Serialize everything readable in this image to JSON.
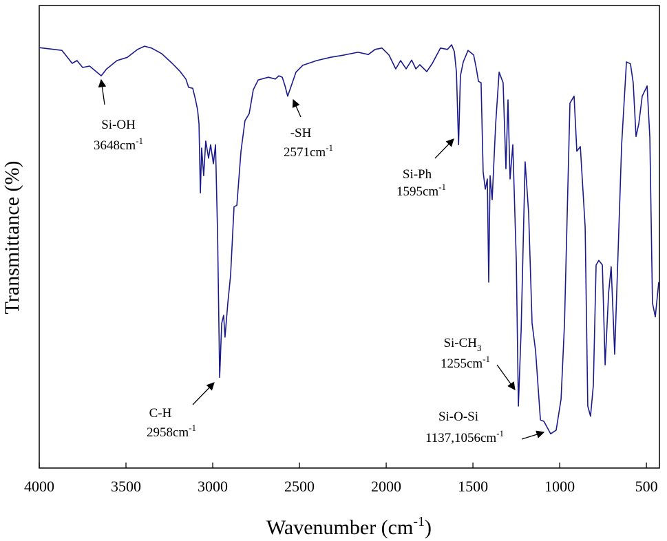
{
  "chart_data": {
    "type": "line",
    "x_label": {
      "text": "Wavenumber (cm",
      "superscript": "-1",
      "suffix": ")"
    },
    "y_label": "Transmittance (%)",
    "color": "#1a1a8c",
    "xlim": [
      4000,
      425
    ],
    "ylim": [
      0,
      100
    ],
    "xticks": [
      4000,
      3500,
      3000,
      2500,
      2000,
      1500,
      1000,
      500
    ],
    "annotations": [
      {
        "label": "Si-OH",
        "wavenumber": "3648cm",
        "exponent": "-1"
      },
      {
        "label": "-SH",
        "wavenumber": "2571cm",
        "exponent": "-1"
      },
      {
        "label": "Si-Ph",
        "wavenumber": "1595cm",
        "exponent": "-1"
      },
      {
        "label": "C-H",
        "wavenumber": "2958cm",
        "exponent": "-1"
      },
      {
        "label": "Si-CH",
        "label_subscript": "3",
        "wavenumber": "1255cm",
        "exponent": "-1"
      },
      {
        "label": "Si-O-Si",
        "wavenumber": "1137,1056cm",
        "exponent": "-1"
      }
    ],
    "x": [
      4000,
      3869,
      3810,
      3782,
      3750,
      3710,
      3671,
      3643,
      3611,
      3552,
      3492,
      3433,
      3393,
      3353,
      3294,
      3234,
      3187,
      3155,
      3139,
      3115,
      3099,
      3087,
      3079,
      3071,
      3064,
      3052,
      3040,
      3024,
      3012,
      2996,
      2984,
      2972,
      2960,
      2948,
      2937,
      2929,
      2913,
      2897,
      2877,
      2861,
      2837,
      2814,
      2790,
      2766,
      2738,
      2679,
      2639,
      2619,
      2599,
      2583,
      2568,
      2552,
      2520,
      2480,
      2401,
      2322,
      2242,
      2163,
      2103,
      2064,
      2024,
      1984,
      1945,
      1917,
      1885,
      1853,
      1829,
      1806,
      1766,
      1734,
      1687,
      1647,
      1623,
      1607,
      1595,
      1583,
      1572,
      1556,
      1528,
      1496,
      1480,
      1468,
      1453,
      1441,
      1429,
      1417,
      1409,
      1401,
      1389,
      1369,
      1349,
      1326,
      1310,
      1298,
      1286,
      1270,
      1250,
      1238,
      1222,
      1199,
      1179,
      1159,
      1139,
      1111,
      1091,
      1052,
      1020,
      992,
      972,
      941,
      917,
      901,
      881,
      853,
      838,
      822,
      806,
      790,
      774,
      754,
      738,
      718,
      703,
      683,
      663,
      643,
      615,
      592,
      576,
      560,
      544,
      524,
      496,
      480,
      465,
      449,
      429
    ],
    "values": [
      90.9,
      90.3,
      87.5,
      88.1,
      86.6,
      86.9,
      85.7,
      84.8,
      86.3,
      88.1,
      88.8,
      90.5,
      91.2,
      90.8,
      89.6,
      87.5,
      85.7,
      84.1,
      82.3,
      82.1,
      79.6,
      77.4,
      74.4,
      59.5,
      69.2,
      63.2,
      70.7,
      67.0,
      69.9,
      65.8,
      69.9,
      50.6,
      19.6,
      31.3,
      33.0,
      28.3,
      35.7,
      41.7,
      56.5,
      56.8,
      68.5,
      75.1,
      76.6,
      81.8,
      83.9,
      84.5,
      84.1,
      84.8,
      84.5,
      82.6,
      80.4,
      82.1,
      85.6,
      87.1,
      88.1,
      88.8,
      89.3,
      89.9,
      89.4,
      90.5,
      90.8,
      89.3,
      86.3,
      88.1,
      86.3,
      88.2,
      86.3,
      87.2,
      85.7,
      87.5,
      90.8,
      90.5,
      91.5,
      90.0,
      85.6,
      69.9,
      84.8,
      87.8,
      90.3,
      89.3,
      86.3,
      83.6,
      83.3,
      64.0,
      60.3,
      62.5,
      40.2,
      63.2,
      58.0,
      74.4,
      85.6,
      83.3,
      64.7,
      79.6,
      62.5,
      69.9,
      44.6,
      13.4,
      29.8,
      66.2,
      55.1,
      31.3,
      25.3,
      10.4,
      10.1,
      7.4,
      8.2,
      14.9,
      31.3,
      78.9,
      80.4,
      68.5,
      69.5,
      52.1,
      13.4,
      11.2,
      17.9,
      43.9,
      44.9,
      43.9,
      22.3,
      37.9,
      43.5,
      24.6,
      46.9,
      69.9,
      87.8,
      87.4,
      83.3,
      71.7,
      74.4,
      80.4,
      82.6,
      71.4,
      35.7,
      32.7,
      40.2
    ]
  }
}
